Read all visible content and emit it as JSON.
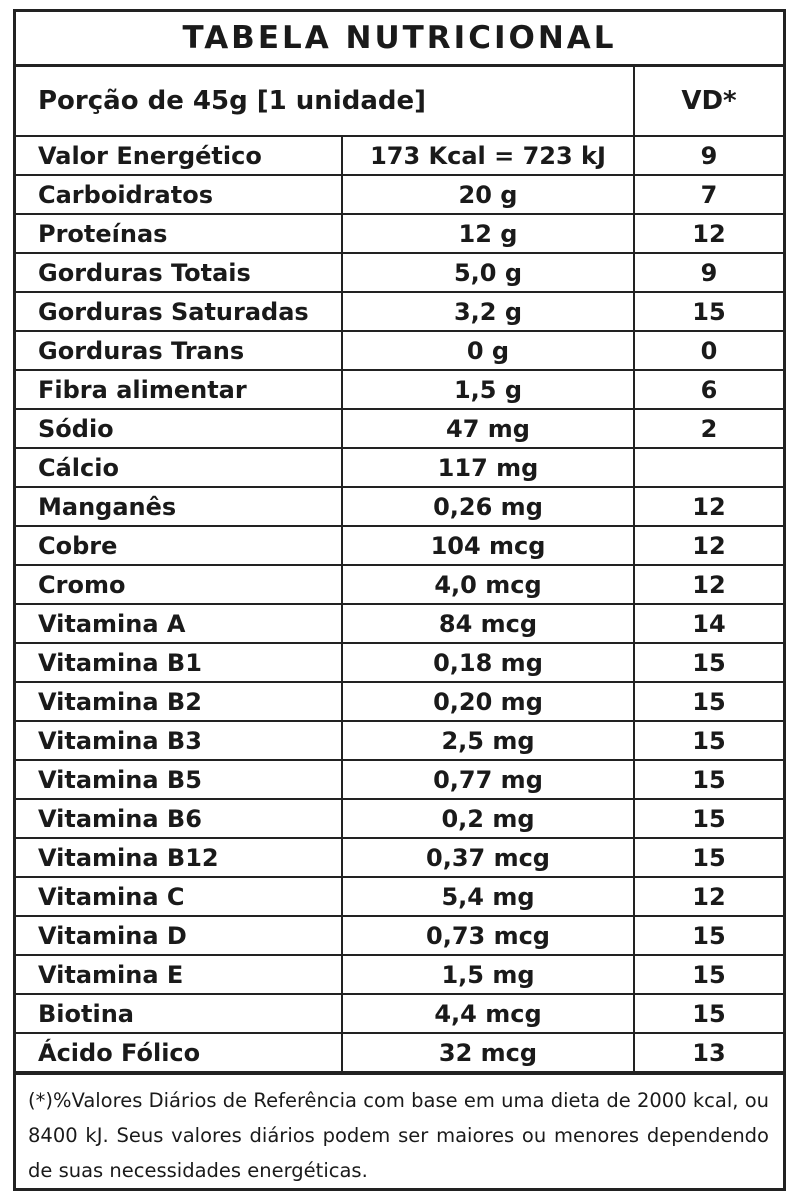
{
  "table": {
    "title": "TABELA NUTRICIONAL",
    "portion": "Porção de 45g  [1 unidade]",
    "vd_header": "VD*",
    "rows": [
      {
        "name": "Valor Energético",
        "amount": "173 Kcal = 723 kJ",
        "vd": "9"
      },
      {
        "name": "Carboidratos",
        "amount": "20 g",
        "vd": "7"
      },
      {
        "name": "Proteínas",
        "amount": "12 g",
        "vd": "12"
      },
      {
        "name": "Gorduras Totais",
        "amount": "5,0 g",
        "vd": "9"
      },
      {
        "name": "Gorduras Saturadas",
        "amount": "3,2 g",
        "vd": "15"
      },
      {
        "name": "Gorduras Trans",
        "amount": "0 g",
        "vd": "0"
      },
      {
        "name": "Fibra alimentar",
        "amount": "1,5 g",
        "vd": "6"
      },
      {
        "name": "Sódio",
        "amount": "47 mg",
        "vd": "2"
      },
      {
        "name": "Cálcio",
        "amount": "117 mg",
        "vd": ""
      },
      {
        "name": "Manganês",
        "amount": "0,26 mg",
        "vd": "12"
      },
      {
        "name": "Cobre",
        "amount": "104 mcg",
        "vd": "12"
      },
      {
        "name": "Cromo",
        "amount": "4,0 mcg",
        "vd": "12"
      },
      {
        "name": "Vitamina A",
        "amount": "84 mcg",
        "vd": "14"
      },
      {
        "name": "Vitamina B1",
        "amount": "0,18 mg",
        "vd": "15"
      },
      {
        "name": "Vitamina B2",
        "amount": "0,20 mg",
        "vd": "15"
      },
      {
        "name": "Vitamina B3",
        "amount": "2,5 mg",
        "vd": "15"
      },
      {
        "name": "Vitamina B5",
        "amount": "0,77 mg",
        "vd": "15"
      },
      {
        "name": "Vitamina B6",
        "amount": "0,2 mg",
        "vd": "15"
      },
      {
        "name": "Vitamina B12",
        "amount": "0,37 mcg",
        "vd": "15"
      },
      {
        "name": "Vitamina C",
        "amount": "5,4 mg",
        "vd": "12"
      },
      {
        "name": "Vitamina D",
        "amount": "0,73 mcg",
        "vd": "15"
      },
      {
        "name": "Vitamina E",
        "amount": "1,5 mg",
        "vd": "15"
      },
      {
        "name": "Biotina",
        "amount": "4,4 mcg",
        "vd": "15"
      },
      {
        "name": "Ácido Fólico",
        "amount": "32 mcg",
        "vd": "13"
      }
    ],
    "footnote": "(*)%Valores Diários de Referência com base em uma dieta de 2000 kcal, ou 8400 kJ. Seus valores diários podem ser maiores ou menores dependendo de suas necessidades energéticas."
  }
}
